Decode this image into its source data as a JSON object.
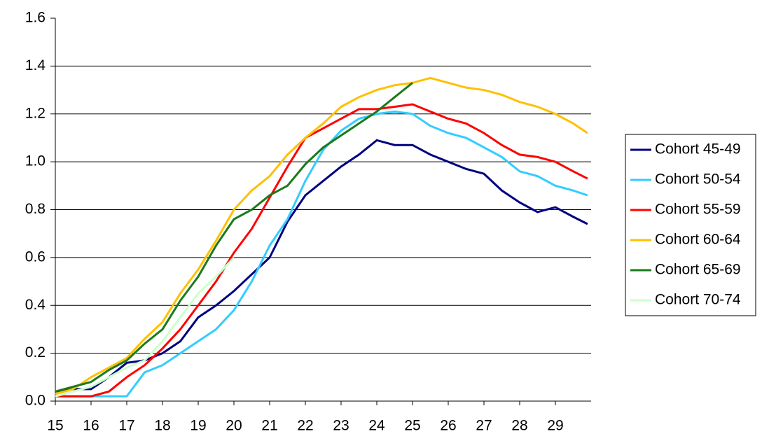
{
  "chart_data": {
    "type": "line",
    "x": [
      15,
      15.5,
      16,
      16.5,
      17,
      17.5,
      18,
      18.5,
      19,
      19.5,
      20,
      20.5,
      21,
      21.5,
      22,
      22.5,
      23,
      23.5,
      24,
      24.5,
      25,
      25.5,
      26,
      26.5,
      27,
      27.5,
      28,
      28.5,
      29,
      29.5,
      29.9
    ],
    "series": [
      {
        "name": "Cohort 45-49",
        "color": "#000080",
        "values": [
          0.04,
          0.05,
          0.05,
          0.1,
          0.16,
          0.17,
          0.2,
          0.25,
          0.35,
          0.4,
          0.46,
          0.53,
          0.6,
          0.75,
          0.86,
          0.92,
          0.98,
          1.03,
          1.09,
          1.07,
          1.07,
          1.03,
          1.0,
          0.97,
          0.95,
          0.88,
          0.83,
          0.79,
          0.81,
          0.77,
          0.74
        ]
      },
      {
        "name": "Cohort 50-54",
        "color": "#33ccff",
        "values": [
          0.02,
          0.02,
          0.02,
          0.02,
          0.02,
          0.12,
          0.15,
          0.2,
          0.25,
          0.3,
          0.38,
          0.5,
          0.65,
          0.76,
          0.92,
          1.05,
          1.13,
          1.18,
          1.2,
          1.21,
          1.2,
          1.15,
          1.12,
          1.1,
          1.06,
          1.02,
          0.96,
          0.94,
          0.9,
          0.88,
          0.86
        ]
      },
      {
        "name": "Cohort 55-59",
        "color": "#ff0000",
        "values": [
          0.02,
          0.02,
          0.02,
          0.04,
          0.1,
          0.15,
          0.22,
          0.3,
          0.4,
          0.5,
          0.62,
          0.72,
          0.85,
          0.98,
          1.1,
          1.14,
          1.18,
          1.22,
          1.22,
          1.23,
          1.24,
          1.21,
          1.18,
          1.16,
          1.12,
          1.07,
          1.03,
          1.02,
          1.0,
          0.96,
          0.93
        ]
      },
      {
        "name": "Cohort 60-64",
        "color": "#ffc000",
        "values": [
          0.03,
          0.05,
          0.1,
          0.14,
          0.18,
          0.26,
          0.33,
          0.45,
          0.55,
          0.67,
          0.8,
          0.88,
          0.94,
          1.03,
          1.1,
          1.16,
          1.23,
          1.27,
          1.3,
          1.32,
          1.33,
          1.35,
          1.33,
          1.31,
          1.3,
          1.28,
          1.25,
          1.23,
          1.2,
          1.16,
          1.12
        ]
      },
      {
        "name": "Cohort 65-69",
        "color": "#1a7a1a",
        "values": [
          0.04,
          0.06,
          0.08,
          0.13,
          0.17,
          0.24,
          0.3,
          0.42,
          0.52,
          0.65,
          0.76,
          0.8,
          0.86,
          0.9,
          0.99,
          1.06,
          1.11,
          1.16,
          1.21,
          1.27,
          1.33,
          null,
          null,
          null,
          null,
          null,
          null,
          null,
          null,
          null,
          null
        ]
      },
      {
        "name": "Cohort 70-74",
        "color": "#ccffcc",
        "values": [
          0.02,
          0.04,
          0.06,
          0.1,
          0.14,
          0.17,
          0.25,
          0.35,
          0.45,
          0.52,
          0.6,
          null,
          null,
          null,
          null,
          null,
          null,
          null,
          null,
          null,
          null,
          null,
          null,
          null,
          null,
          null,
          null,
          null,
          null,
          null,
          null
        ]
      }
    ],
    "xlim": [
      15,
      30
    ],
    "xticks": [
      15,
      16,
      17,
      18,
      19,
      20,
      21,
      22,
      23,
      24,
      25,
      26,
      27,
      28,
      29
    ],
    "ylim": [
      0,
      1.6
    ],
    "yticks": [
      {
        "value": 0,
        "label": "0.0"
      },
      0.2,
      0.4,
      0.6,
      0.8,
      {
        "value": 1,
        "label": "1.0"
      },
      1.2,
      1.4,
      1.6
    ],
    "grid": true,
    "legend": "right"
  }
}
